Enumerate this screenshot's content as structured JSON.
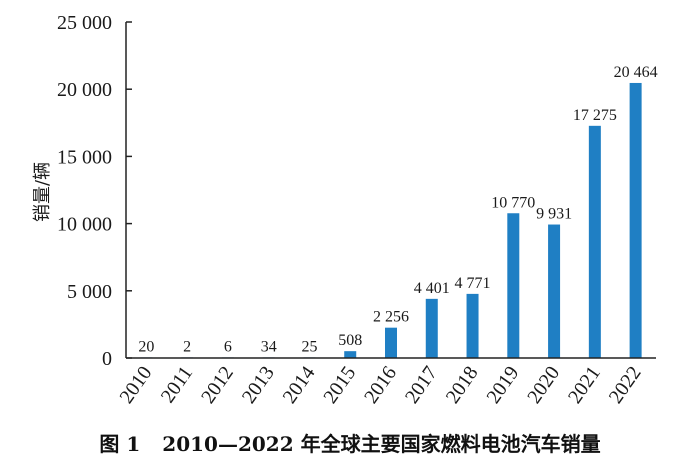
{
  "chart_data": {
    "type": "bar",
    "categories": [
      "2010",
      "2011",
      "2012",
      "2013",
      "2014",
      "2015",
      "2016",
      "2017",
      "2018",
      "2019",
      "2020",
      "2021",
      "2022"
    ],
    "values": [
      20,
      2,
      6,
      34,
      25,
      508,
      2256,
      4401,
      4771,
      10770,
      9931,
      17275,
      20464
    ],
    "data_labels": [
      "20",
      "2",
      "6",
      "34",
      "25",
      "508",
      "2 256",
      "4 401",
      "4 771",
      "10 770",
      "9 931",
      "17 275",
      "20 464"
    ],
    "title": "图 1　2010—2022 年全球主要国家燃料电池汽车销量",
    "xlabel": "",
    "ylabel": "销量/辆",
    "ylim": [
      0,
      25000
    ],
    "yticks": [
      0,
      5000,
      10000,
      15000,
      20000,
      25000
    ],
    "ytick_labels": [
      "0",
      "5 000",
      "10 000",
      "15 000",
      "20 000",
      "25 000"
    ],
    "bar_color": "#1f7fc4",
    "grid": false
  },
  "caption": {
    "figure_number": "图 1",
    "text": "2010—2022 年全球主要国家燃料电池汽车销量"
  }
}
